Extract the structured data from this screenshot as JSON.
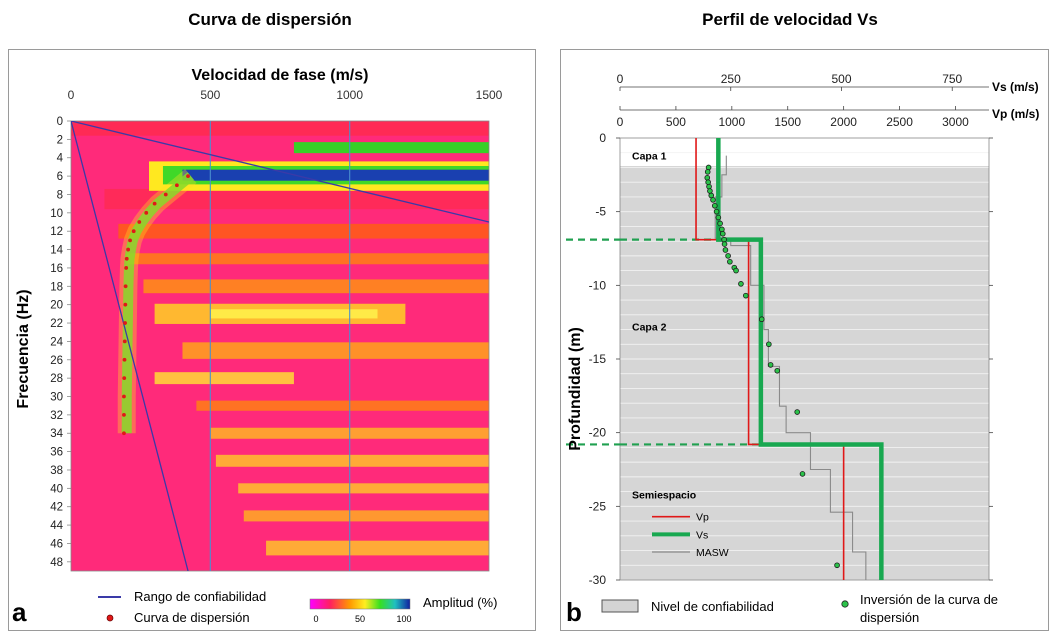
{
  "titles": {
    "left": "Curva de dispersión",
    "right": "Perfil de velocidad Vs"
  },
  "chart_data": [
    {
      "type": "heatmap",
      "panel_label": "a",
      "xlabel": "Velocidad de fase (m/s)",
      "ylabel": "Frecuencia (Hz)",
      "x_ticks": [
        "0",
        "500",
        "1000",
        "1500"
      ],
      "xlim": [
        0,
        1500
      ],
      "ylim": [
        0,
        49
      ],
      "y_ticks": [
        "0",
        "2",
        "4",
        "6",
        "8",
        "10",
        "12",
        "14",
        "16",
        "18",
        "20",
        "22",
        "24",
        "26",
        "28",
        "30",
        "32",
        "34",
        "36",
        "38",
        "40",
        "42",
        "44",
        "46",
        "48"
      ],
      "confidence_range_lines": [
        {
          "x": [
            0,
            1500
          ],
          "y": [
            0,
            11
          ]
        },
        {
          "x": [
            0,
            420
          ],
          "y": [
            0,
            49
          ]
        }
      ],
      "dispersion_curve": {
        "x": [
          420,
          380,
          340,
          300,
          270,
          245,
          225,
          212,
          205,
          200,
          198,
          196,
          195,
          194,
          193,
          192,
          191,
          190,
          190,
          190
        ],
        "y": [
          6,
          7,
          8,
          9,
          10,
          11,
          12,
          13,
          14,
          15,
          16,
          18,
          20,
          22,
          24,
          26,
          28,
          30,
          32,
          34
        ]
      },
      "colorbar": {
        "label": "Amplitud (%)",
        "ticks": [
          "0",
          "50",
          "100"
        ]
      },
      "legend": [
        {
          "label": "Rango de confiabilidad",
          "color": "#3a3aa8"
        },
        {
          "label": "Curva de dispersión",
          "color": "#e01818"
        }
      ]
    },
    {
      "type": "line",
      "panel_label": "b",
      "ylabel": "Profundidad (m)",
      "vs_axis": {
        "label": "Vs (m/s)",
        "ticks": [
          "0",
          "250",
          "500",
          "750"
        ],
        "lim": [
          0,
          833
        ]
      },
      "vp_axis": {
        "label": "Vp (m/s)",
        "ticks": [
          "0",
          "500",
          "1000",
          "1500",
          "2000",
          "2500",
          "3000"
        ],
        "lim": [
          0,
          3300
        ]
      },
      "y_ticks": [
        "0",
        "-5",
        "-10",
        "-15",
        "-20",
        "-25",
        "-30"
      ],
      "ylim": [
        -30,
        0
      ],
      "layers": [
        {
          "label": "Capa 1",
          "depth": -1.2
        },
        {
          "label": "Capa 2",
          "depth": -12.8
        },
        {
          "label": "Semiespacio",
          "depth": -24.2
        }
      ],
      "interfaces": [
        -6.9,
        -20.8
      ],
      "confidence_top": -1.9,
      "series": [
        {
          "name": "Vp",
          "axis": "vp",
          "color": "#e01818",
          "steps": [
            {
              "v": 680,
              "top": 0,
              "bottom": -6.9
            },
            {
              "v": 1150,
              "top": -6.9,
              "bottom": -20.8
            },
            {
              "v": 2000,
              "top": -20.8,
              "bottom": -30
            }
          ]
        },
        {
          "name": "Vs",
          "axis": "vs",
          "color": "#18a850",
          "steps": [
            {
              "v": 222,
              "top": 0,
              "bottom": -6.9
            },
            {
              "v": 318,
              "top": -6.9,
              "bottom": -20.8
            },
            {
              "v": 590,
              "top": -20.8,
              "bottom": -30
            }
          ]
        },
        {
          "name": "MASW",
          "axis": "vs",
          "color": "#8a8a8a",
          "steps": [
            {
              "v": 240,
              "top": -1.2,
              "bottom": -2.5
            },
            {
              "v": 230,
              "top": -2.5,
              "bottom": -4
            },
            {
              "v": 215,
              "top": -4,
              "bottom": -6.8
            },
            {
              "v": 250,
              "top": -6.8,
              "bottom": -7.3
            },
            {
              "v": 295,
              "top": -7.3,
              "bottom": -10
            },
            {
              "v": 325,
              "top": -10,
              "bottom": -13
            },
            {
              "v": 335,
              "top": -13,
              "bottom": -15.5
            },
            {
              "v": 360,
              "top": -15.5,
              "bottom": -18.2
            },
            {
              "v": 375,
              "top": -18.2,
              "bottom": -20
            },
            {
              "v": 430,
              "top": -20,
              "bottom": -22.5
            },
            {
              "v": 475,
              "top": -22.5,
              "bottom": -25.4
            },
            {
              "v": 525,
              "top": -25.4,
              "bottom": -28.1
            },
            {
              "v": 555,
              "top": -28.1,
              "bottom": -30
            }
          ]
        }
      ],
      "inversion_points": {
        "vs": [
          200,
          198,
          197,
          199,
          201,
          203,
          206,
          210,
          214,
          218,
          222,
          226,
          230,
          232,
          235,
          236,
          238,
          244,
          248,
          258,
          262,
          273,
          284,
          320,
          336,
          340,
          355,
          400,
          412,
          490
        ],
        "depth": [
          -2.0,
          -2.3,
          -2.7,
          -3.0,
          -3.3,
          -3.6,
          -3.9,
          -4.2,
          -4.6,
          -5.0,
          -5.4,
          -5.8,
          -6.2,
          -6.5,
          -6.9,
          -7.2,
          -7.6,
          -8.0,
          -8.4,
          -8.8,
          -9.0,
          -9.9,
          -10.7,
          -12.3,
          -14.0,
          -15.4,
          -15.8,
          -18.6,
          -22.8,
          -29.0
        ]
      },
      "legend": [
        {
          "label": "Vp",
          "color": "#e01818"
        },
        {
          "label": "Vs",
          "color": "#18a850"
        },
        {
          "label": "MASW",
          "color": "#8a8a8a"
        },
        {
          "label": "Nivel de confiabilidad",
          "color": "#d4d4d4"
        },
        {
          "label": "Inversión de la curva de",
          "color": "#2bc24a"
        },
        {
          "label": "dispersión",
          "color": ""
        }
      ]
    }
  ]
}
